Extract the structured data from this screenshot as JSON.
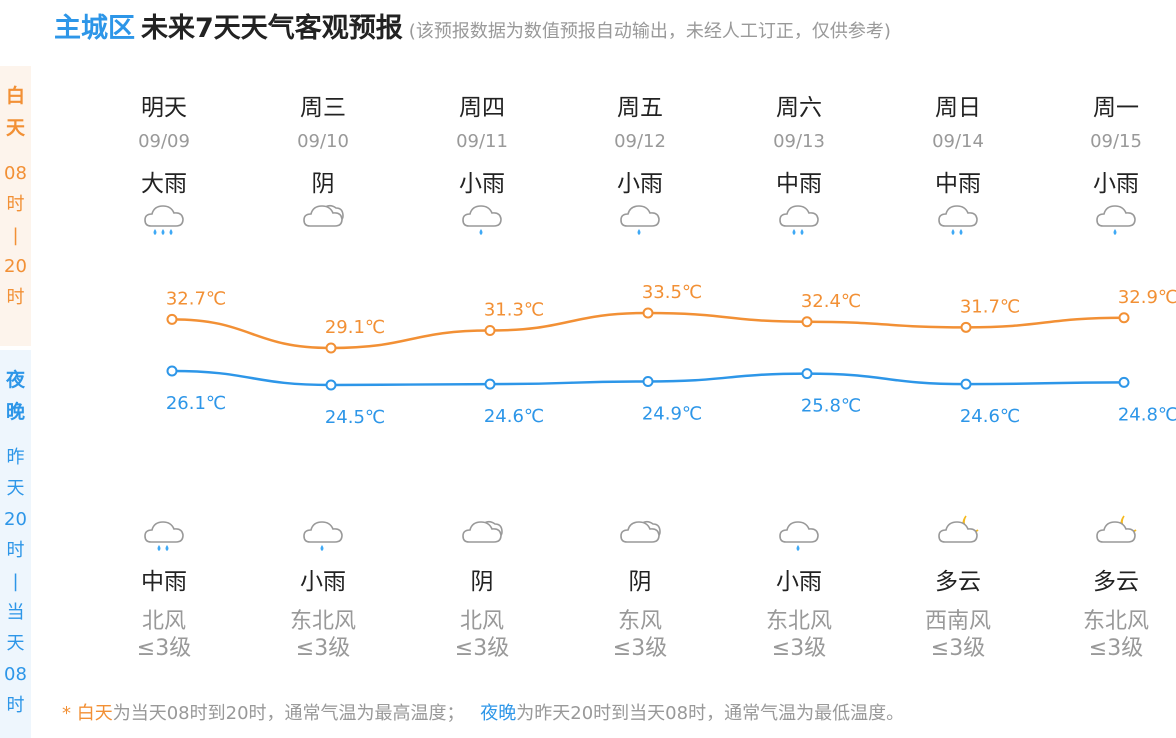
{
  "header": {
    "district": "主城区",
    "title": "未来7天天气客观预报",
    "note": "(该预报数据为数值预报自动输出，未经人工订正，仅供参考)"
  },
  "side": {
    "day_label": [
      "白",
      "天"
    ],
    "day_range": [
      "08",
      "时",
      "|",
      "20",
      "时"
    ],
    "night_label": [
      "夜",
      "晚"
    ],
    "night_range": [
      "昨",
      "天",
      "20",
      "时",
      "|",
      "当",
      "天",
      "08",
      "时"
    ]
  },
  "days": [
    {
      "name": "明天",
      "date": "09/09",
      "day_weather": "大雨",
      "day_icon": "heavy-rain-icon",
      "high": "32.7℃",
      "low": "26.1℃",
      "night_icon": "moderate-rain-icon",
      "night_weather": "中雨",
      "wind_dir": "北风",
      "wind_level": "≤3级"
    },
    {
      "name": "周三",
      "date": "09/10",
      "day_weather": "阴",
      "day_icon": "overcast-icon",
      "high": "29.1℃",
      "low": "24.5℃",
      "night_icon": "light-rain-icon",
      "night_weather": "小雨",
      "wind_dir": "东北风",
      "wind_level": "≤3级"
    },
    {
      "name": "周四",
      "date": "09/11",
      "day_weather": "小雨",
      "day_icon": "light-rain-icon",
      "high": "31.3℃",
      "low": "24.6℃",
      "night_icon": "overcast-icon",
      "night_weather": "阴",
      "wind_dir": "北风",
      "wind_level": "≤3级"
    },
    {
      "name": "周五",
      "date": "09/12",
      "day_weather": "小雨",
      "day_icon": "light-rain-icon",
      "high": "33.5℃",
      "low": "24.9℃",
      "night_icon": "overcast-icon",
      "night_weather": "阴",
      "wind_dir": "东风",
      "wind_level": "≤3级"
    },
    {
      "name": "周六",
      "date": "09/13",
      "day_weather": "中雨",
      "day_icon": "moderate-rain-icon",
      "high": "32.4℃",
      "low": "25.8℃",
      "night_icon": "light-rain-icon",
      "night_weather": "小雨",
      "wind_dir": "东北风",
      "wind_level": "≤3级"
    },
    {
      "name": "周日",
      "date": "09/14",
      "day_weather": "中雨",
      "day_icon": "moderate-rain-icon",
      "high": "31.7℃",
      "low": "24.6℃",
      "night_icon": "partly-cloudy-night-icon",
      "night_weather": "多云",
      "wind_dir": "西南风",
      "wind_level": "≤3级"
    },
    {
      "name": "周一",
      "date": "09/15",
      "day_weather": "小雨",
      "day_icon": "light-rain-icon",
      "high": "32.9℃",
      "low": "24.8℃",
      "night_icon": "partly-cloudy-night-icon",
      "night_weather": "多云",
      "wind_dir": "东北风",
      "wind_level": "≤3级"
    }
  ],
  "temps": {
    "high": [
      32.7,
      29.1,
      31.3,
      33.5,
      32.4,
      31.7,
      32.9
    ],
    "low": [
      26.1,
      24.5,
      24.6,
      24.9,
      25.8,
      24.6,
      24.8
    ]
  },
  "footer": {
    "star": "*",
    "day_term": "白天",
    "day_text": "为当天08时到20时，通常气温为最高温度；",
    "night_term": "夜晚",
    "night_text": "为昨天20时到当天08时，通常气温为最低温度。"
  },
  "colors": {
    "day": "#f29035",
    "night": "#2d96e8",
    "rain": "#3fa9f5",
    "moon": "#f5b91e",
    "cloud_stroke": "#999999"
  }
}
